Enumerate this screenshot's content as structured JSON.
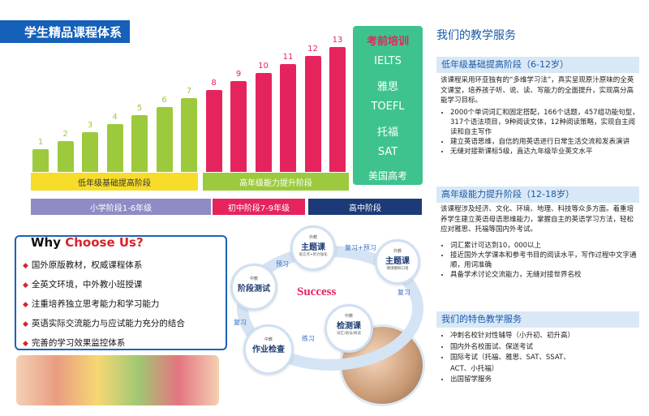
{
  "header_title": "学生精品课程体系",
  "bars": [
    {
      "label": "1",
      "value": 1,
      "color": "#9cca3c"
    },
    {
      "label": "2",
      "value": 2,
      "color": "#9cca3c"
    },
    {
      "label": "3",
      "value": 3,
      "color": "#9cca3c"
    },
    {
      "label": "4",
      "value": 4,
      "color": "#9cca3c"
    },
    {
      "label": "5",
      "value": 5,
      "color": "#9cca3c"
    },
    {
      "label": "6",
      "value": 6,
      "color": "#9cca3c"
    },
    {
      "label": "7",
      "value": 7,
      "color": "#9cca3c"
    },
    {
      "label": "8",
      "value": 8,
      "color": "#e5245e"
    },
    {
      "label": "9",
      "value": 9,
      "color": "#e5245e"
    },
    {
      "label": "10",
      "value": 10,
      "color": "#e5245e"
    },
    {
      "label": "11",
      "value": 11,
      "color": "#e5245e"
    },
    {
      "label": "12",
      "value": 12,
      "color": "#e5245e"
    },
    {
      "label": "13",
      "value": 13,
      "color": "#e5245e"
    }
  ],
  "stage_low": "低年级基础提高阶段",
  "stage_high": "高年级能力提升阶段",
  "school_primary": "小学阶段1-6年级",
  "school_junior": "初中阶段7-9年级",
  "school_senior": "高中阶段",
  "exam": {
    "title": "考前培训",
    "items": [
      "IELTS",
      "雅思",
      "TOEFL",
      "托福",
      "SAT",
      "美国高考"
    ]
  },
  "services_title": "我们的教学服务",
  "low_stage": {
    "heading": "低年级基础提高阶段（6-12岁）",
    "desc": "该课程采用环亚独有的“多维学习法”，真实呈现原汁原味的全英文课堂，培养孩子听、说、读、写能力的全面提升，实现高分高能学习目标。",
    "bullets": [
      "2000个单词词汇和固定搭配，166个话题，457组功能句型，317个语法项目，9种阅读文体，12种阅读策略，实现自主阅读和自主写作",
      "建立英语思维，自信的用英语进行日常生活交流和发表演讲",
      "无缝对接新课标5级，直达九年级毕业英文水平"
    ]
  },
  "high_stage": {
    "heading": "高年级能力提升阶段（12-18岁）",
    "desc": "该课程涉及经济、文化、环境、地理、科技等众多方面。着重培养学生建立英语母语思维能力，掌握自主的英语学习方法，轻松应对雅思、托福等国内外考试。",
    "bullets": [
      "词汇累计可达到10，000以上",
      "接近国外大学课本和参考书目的阅读水平，写作过程中文字通顺，用词准确",
      "具备学术讨论交流能力，无缝对接世界名校"
    ]
  },
  "special": {
    "heading": "我们的特色教学服务",
    "bullets": [
      "冲刺名校针对性辅导（小升初、初升高）",
      "国内外名校面试、保送考试",
      "国际考试（托福、雅思、SAT、SSAT、ACT、小托福）",
      "出国留学服务"
    ]
  },
  "why": {
    "title_a": "Why ",
    "title_b": "Choose Us?",
    "items": [
      "国外原版教材，权威课程体系",
      "全英文环境，中外教小班授课",
      "注重培养独立思考能力和学习能力",
      "英语实际交流能力与应试能力充分的结合",
      "完善的学习效果监控体系"
    ]
  },
  "cycle": {
    "center": "Success",
    "nodes": [
      {
        "small": "外教",
        "big": "主题课",
        "sub": "语言点+听力强化"
      },
      {
        "small": "外教",
        "big": "主题课",
        "sub": "情境模拟口语"
      },
      {
        "small": "中教",
        "big": "检测课",
        "sub": "词汇/语法/阅读"
      },
      {
        "small": "中教",
        "big": "作业检查",
        "sub": ""
      },
      {
        "small": "中教",
        "big": "阶段测试",
        "sub": ""
      }
    ],
    "arrows": [
      "复习+预习",
      "复习",
      "练习",
      "复习",
      "预习"
    ]
  }
}
